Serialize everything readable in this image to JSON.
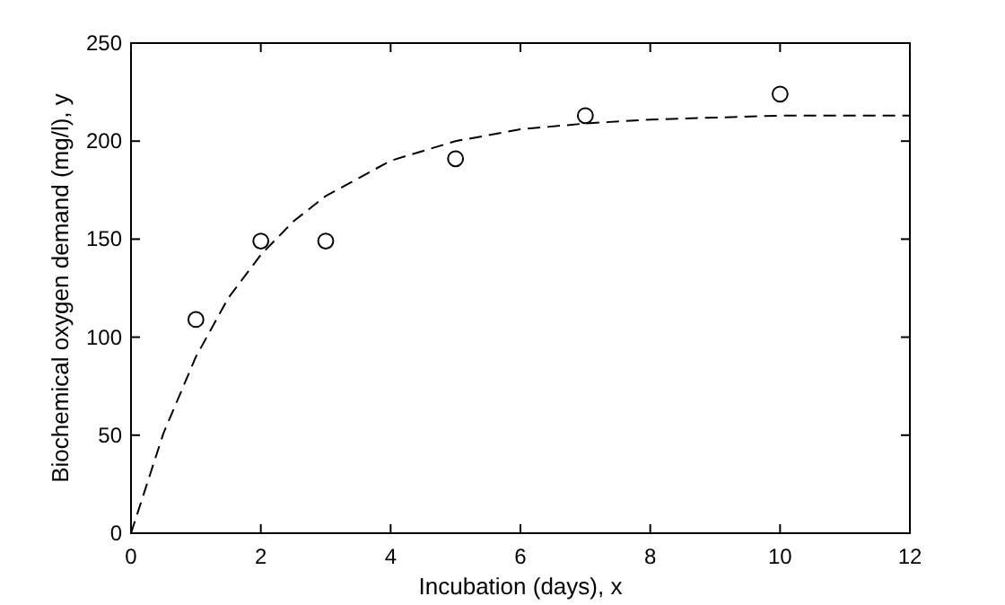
{
  "chart_data": {
    "type": "scatter",
    "xlabel": "Incubation (days), x",
    "ylabel": "Biochemical oxygen demand (mg/l), y",
    "xlim": [
      0,
      12
    ],
    "xticks": [
      0,
      2,
      4,
      6,
      8,
      10,
      12
    ],
    "ylim": [
      0,
      250
    ],
    "yticks": [
      0,
      50,
      100,
      150,
      200,
      250
    ],
    "grid": false,
    "series": [
      {
        "color": "#000000",
        "marker": "circle",
        "x": [
          1,
          2,
          3,
          5,
          7,
          10
        ],
        "values": [
          109,
          149,
          149,
          191,
          213,
          224
        ]
      },
      {
        "type": "line",
        "color": "#000000",
        "line_style": "dashed",
        "marker": "none",
        "x": [
          0,
          0.5,
          1,
          1.5,
          2,
          2.5,
          3,
          4,
          5,
          6,
          7,
          8,
          9,
          10,
          12
        ],
        "values": [
          0,
          51,
          90,
          120,
          142,
          159,
          172,
          190,
          200,
          206,
          209,
          211,
          212,
          213,
          213
        ]
      }
    ]
  }
}
